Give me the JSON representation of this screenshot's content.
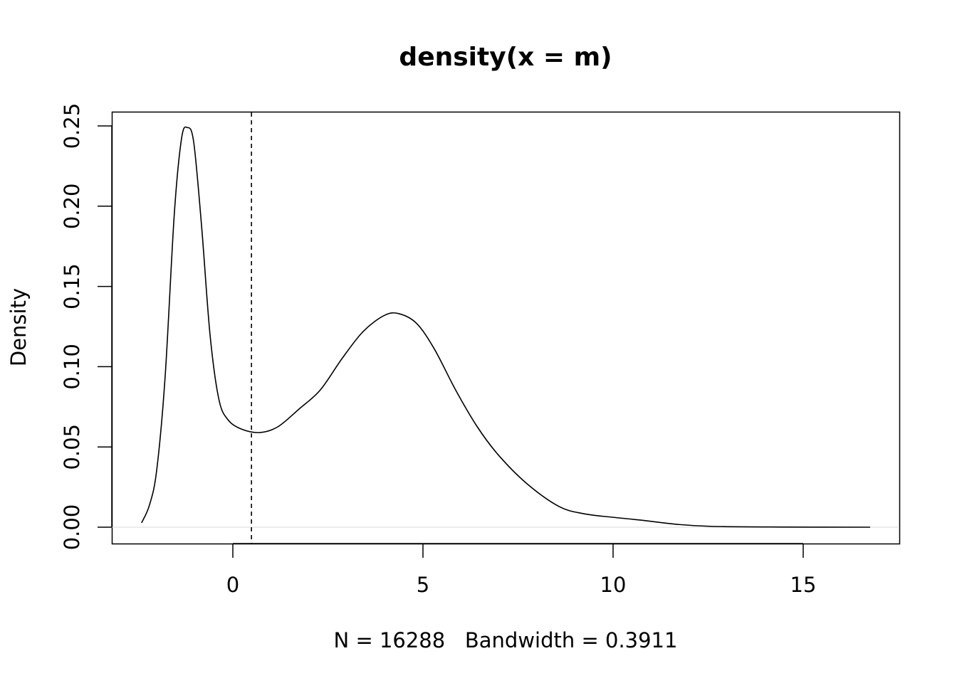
{
  "chart_data": {
    "type": "line",
    "title": "density(x = m)",
    "xlabel": "N = 16288   Bandwidth = 0.3911",
    "ylabel": "Density",
    "xlim": [
      -3.18,
      17.5
    ],
    "ylim": [
      -0.01,
      0.259
    ],
    "x_ticks": [
      0,
      5,
      10,
      15
    ],
    "x_tick_labels": [
      "0",
      "5",
      "10",
      "15"
    ],
    "y_ticks": [
      0,
      0.05,
      0.1,
      0.15,
      0.2,
      0.25
    ],
    "y_tick_labels": [
      "0.00",
      "0.05",
      "0.10",
      "0.15",
      "0.20",
      "0.25"
    ],
    "grid": false,
    "vline": {
      "x": 0.49,
      "style": "dashed"
    },
    "hline": {
      "y": 0,
      "color": "#d9d9d9"
    },
    "series": [
      {
        "name": "density",
        "x": [
          -2.4,
          -2.19,
          -2.0,
          -1.78,
          -1.54,
          -1.35,
          -1.2,
          -1.03,
          -0.82,
          -0.6,
          -0.37,
          -0.13,
          0.24,
          0.71,
          1.18,
          1.74,
          2.3,
          2.87,
          3.43,
          3.99,
          4.37,
          4.83,
          5.3,
          5.87,
          6.43,
          6.99,
          7.74,
          8.58,
          9.23,
          9.98,
          10.73,
          11.67,
          12.6,
          14.5,
          16.76
        ],
        "y": [
          0.0027,
          0.014,
          0.036,
          0.094,
          0.195,
          0.242,
          0.249,
          0.24,
          0.187,
          0.12,
          0.08,
          0.067,
          0.061,
          0.059,
          0.0625,
          0.0736,
          0.0855,
          0.105,
          0.122,
          0.132,
          0.133,
          0.127,
          0.111,
          0.085,
          0.0625,
          0.0448,
          0.027,
          0.0129,
          0.0084,
          0.0062,
          0.0044,
          0.0018,
          0.0005,
          0.0001,
          0.0
        ]
      }
    ]
  }
}
